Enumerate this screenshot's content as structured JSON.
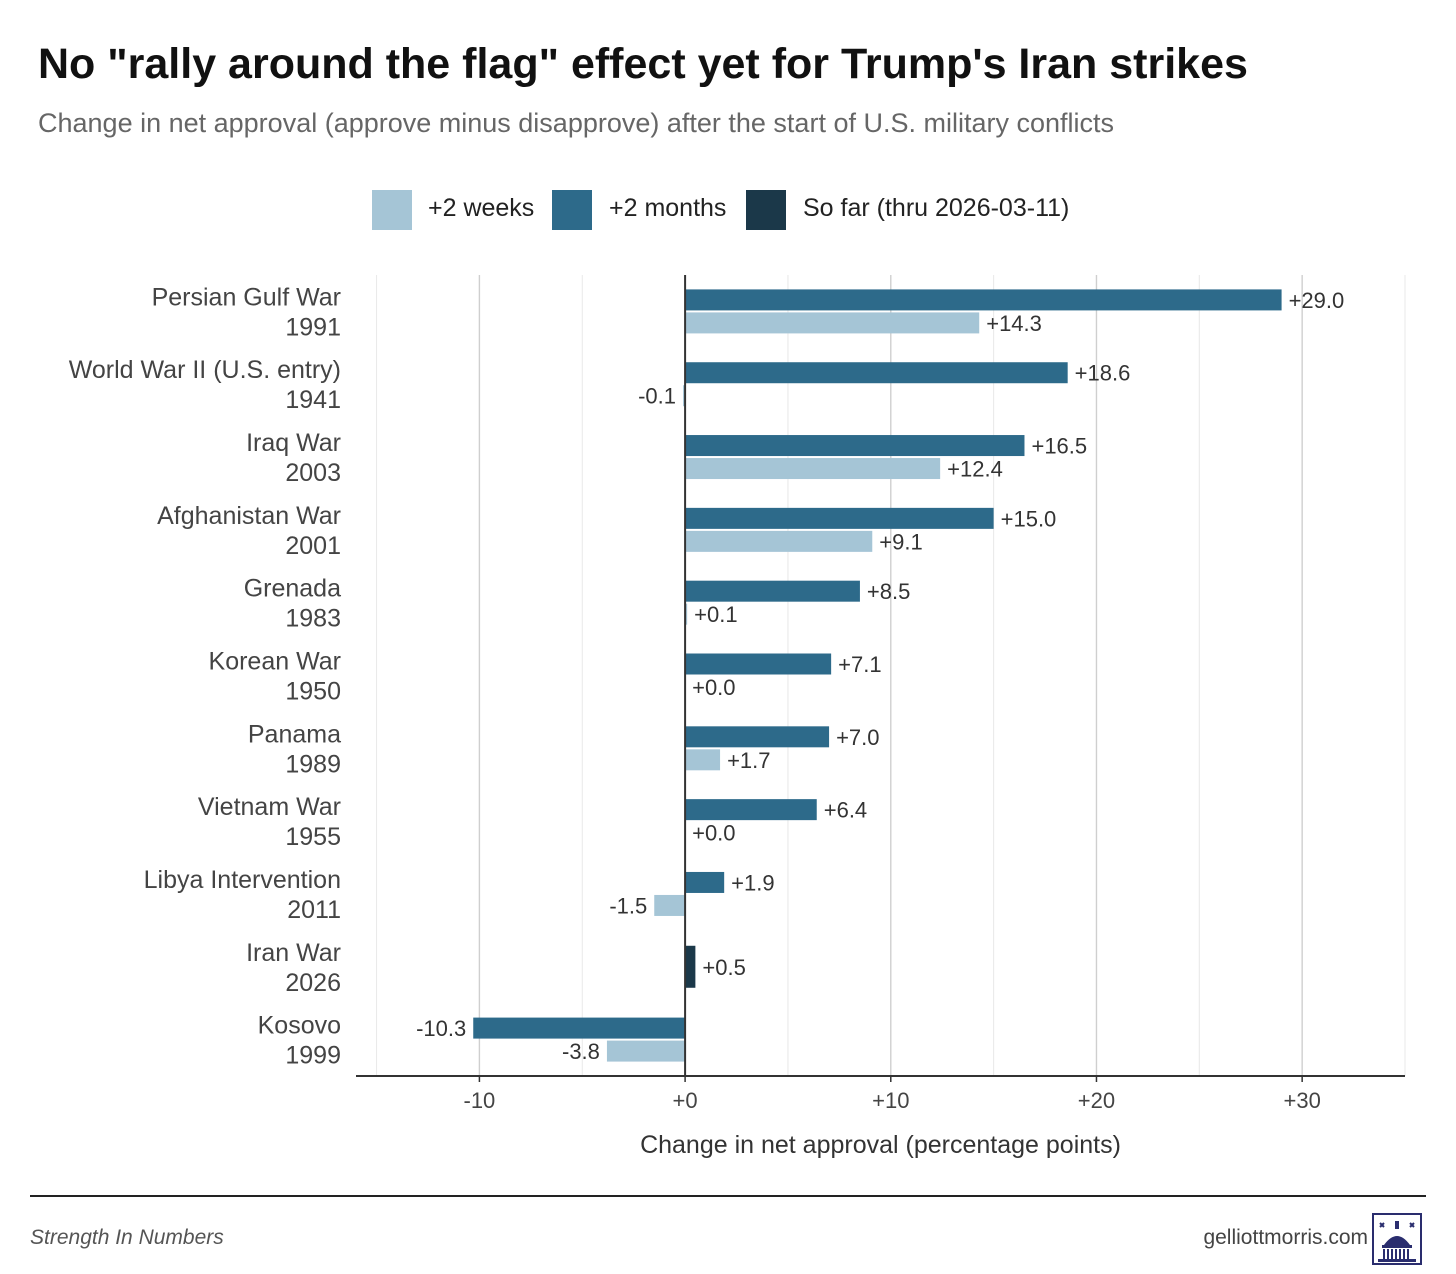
{
  "chart_data": {
    "type": "bar",
    "orientation": "horizontal",
    "title": "No \"rally around the flag\" effect yet for Trump's Iran strikes",
    "subtitle": "Change in net approval (approve minus disapprove) after the start of U.S. military conflicts",
    "xlabel": "Change in net approval (percentage points)",
    "ylabel": "",
    "xlim": [
      -16,
      35
    ],
    "xticks": [
      -10,
      0,
      10,
      20,
      30
    ],
    "xtick_labels": [
      "-10",
      "+0",
      "+10",
      "+20",
      "+30"
    ],
    "grid": true,
    "legend_position": "top",
    "categories": [
      {
        "name": "Persian Gulf War",
        "year": "1991"
      },
      {
        "name": "World War II (U.S. entry)",
        "year": "1941"
      },
      {
        "name": "Iraq War",
        "year": "2003"
      },
      {
        "name": "Afghanistan War",
        "year": "2001"
      },
      {
        "name": "Grenada",
        "year": "1983"
      },
      {
        "name": "Korean War",
        "year": "1950"
      },
      {
        "name": "Panama",
        "year": "1989"
      },
      {
        "name": "Vietnam War",
        "year": "1955"
      },
      {
        "name": "Libya Intervention",
        "year": "2011"
      },
      {
        "name": "Iran War",
        "year": "2026"
      },
      {
        "name": "Kosovo",
        "year": "1999"
      }
    ],
    "series": [
      {
        "name": "+2 weeks",
        "color": "#a5c5d6",
        "values": [
          14.3,
          -0.1,
          12.4,
          9.1,
          0.1,
          0.0,
          1.7,
          0.0,
          -1.5,
          null,
          -3.8
        ],
        "labels": [
          "+14.3",
          "-0.1",
          "+12.4",
          "+9.1",
          "+0.1",
          "+0.0",
          "+1.7",
          "+0.0",
          "-1.5",
          null,
          "-3.8"
        ]
      },
      {
        "name": "+2 months",
        "color": "#2d6a8a",
        "values": [
          29.0,
          18.6,
          16.5,
          15.0,
          8.5,
          7.1,
          7.0,
          6.4,
          1.9,
          null,
          -10.3
        ],
        "labels": [
          "+29.0",
          "+18.6",
          "+16.5",
          "+15.0",
          "+8.5",
          "+7.1",
          "+7.0",
          "+6.4",
          "+1.9",
          null,
          "-10.3"
        ]
      },
      {
        "name": "So far (thru 2026-03-11)",
        "color": "#1b3849",
        "values": [
          null,
          null,
          null,
          null,
          null,
          null,
          null,
          null,
          null,
          0.5,
          null
        ],
        "labels": [
          null,
          null,
          null,
          null,
          null,
          null,
          null,
          null,
          null,
          "+0.5",
          null
        ]
      }
    ]
  },
  "footer": {
    "source": "Strength In Numbers",
    "site": "gelliottmorris.com",
    "logo_icon": "capitol-dome-icon"
  }
}
